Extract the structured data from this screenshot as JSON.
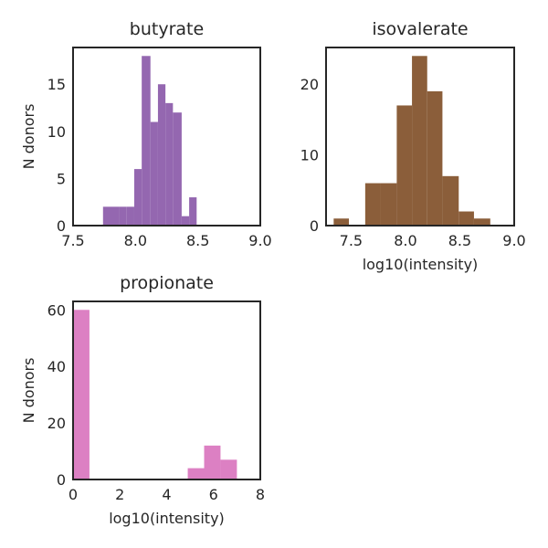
{
  "chart_data": [
    {
      "type": "histogram",
      "title": "butyrate",
      "xlabel": "",
      "ylabel": "N donors",
      "color": "#9467b0",
      "xlim": [
        7.5,
        9.0
      ],
      "ylim": [
        0,
        18.9
      ],
      "xticks": [
        7.5,
        8.0,
        8.5,
        9.0
      ],
      "xtick_labels": [
        "7.5",
        "8.0",
        "8.5",
        "9.0"
      ],
      "yticks": [
        0,
        5,
        10,
        15
      ],
      "ytick_labels": [
        "0",
        "5",
        "10",
        "15"
      ],
      "bins": [
        7.74,
        7.8,
        7.87,
        7.93,
        7.99,
        8.05,
        8.12,
        8.18,
        8.24,
        8.3,
        8.37,
        8.43,
        8.49,
        8.55,
        8.62,
        8.68,
        8.74,
        8.8
      ],
      "counts": [
        2,
        2,
        2,
        2,
        6,
        18,
        11,
        15,
        13,
        12,
        1,
        3,
        0,
        0,
        0,
        0,
        0
      ],
      "grid": false,
      "legend": "none"
    },
    {
      "type": "histogram",
      "title": "isovalerate",
      "xlabel": "log10(intensity)",
      "ylabel": "",
      "color": "#8b5e3a",
      "xlim": [
        7.27,
        9.0
      ],
      "ylim": [
        0,
        25.2
      ],
      "xticks": [
        7.5,
        8.0,
        8.5,
        9.0
      ],
      "xtick_labels": [
        "7.5",
        "8.0",
        "8.5",
        "9.0"
      ],
      "yticks": [
        0,
        10,
        20
      ],
      "ytick_labels": [
        "0",
        "10",
        "20"
      ],
      "bins": [
        7.34,
        7.48,
        7.63,
        7.77,
        7.92,
        8.06,
        8.2,
        8.34,
        8.49,
        8.63,
        8.78,
        8.82
      ],
      "counts": [
        1,
        0,
        6,
        6,
        17,
        24,
        19,
        7,
        2,
        1,
        0
      ],
      "grid": false,
      "legend": "none"
    },
    {
      "type": "histogram",
      "title": "propionate",
      "xlabel": "log10(intensity)",
      "ylabel": "N donors",
      "color": "#dc80c3",
      "xlim": [
        0,
        8
      ],
      "ylim": [
        0,
        63
      ],
      "xticks": [
        0,
        2,
        4,
        6,
        8
      ],
      "xtick_labels": [
        "0",
        "2",
        "4",
        "6",
        "8"
      ],
      "yticks": [
        0,
        20,
        40,
        60
      ],
      "ytick_labels": [
        "0",
        "20",
        "40",
        "60"
      ],
      "bins": [
        0,
        0.7,
        1.4,
        2.1,
        2.8,
        3.5,
        4.2,
        4.9,
        5.6,
        6.3,
        7.0
      ],
      "counts": [
        60,
        0,
        0,
        0,
        0,
        0,
        0,
        4,
        12,
        7
      ],
      "grid": false,
      "legend": "none"
    }
  ]
}
